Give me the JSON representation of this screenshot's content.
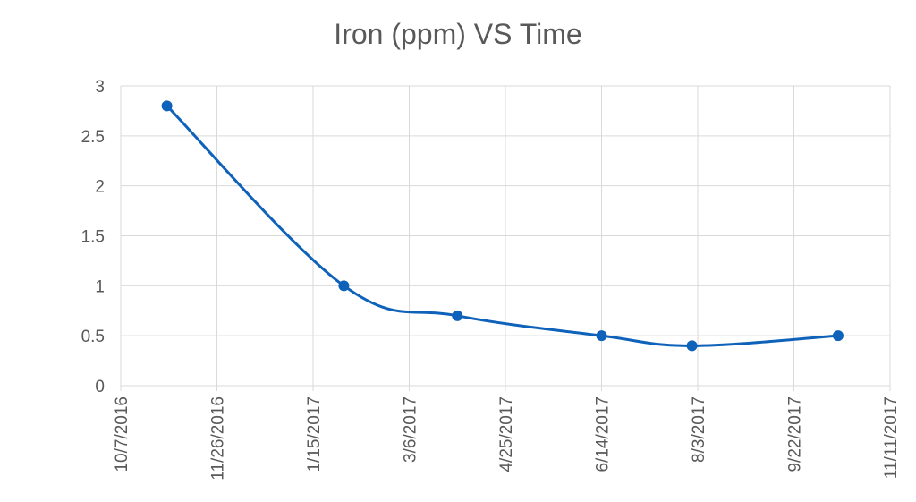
{
  "chart_data": {
    "type": "line",
    "title": "Iron (ppm) VS Time",
    "xlabel": "",
    "ylabel": "",
    "x_tick_labels": [
      "10/7/2016",
      "11/26/2016",
      "1/15/2017",
      "3/6/2017",
      "4/25/2017",
      "6/14/2017",
      "8/3/2017",
      "9/22/2017",
      "11/11/2017"
    ],
    "y_tick_labels": [
      "0",
      "0.5",
      "1",
      "1.5",
      "2",
      "2.5",
      "3"
    ],
    "xlim": [
      "2016-10-07",
      "2017-11-11"
    ],
    "ylim": [
      0,
      3
    ],
    "grid": true,
    "legend": "none",
    "smooth": true,
    "series": [
      {
        "color": "#0f62b9",
        "points": [
          {
            "x": "2016-10-31",
            "y": 2.8
          },
          {
            "x": "2017-01-31",
            "y": 1.0
          },
          {
            "x": "2017-03-31",
            "y": 0.7
          },
          {
            "x": "2017-06-14",
            "y": 0.5
          },
          {
            "x": "2017-07-31",
            "y": 0.4
          },
          {
            "x": "2017-10-15",
            "y": 0.5
          }
        ]
      }
    ]
  }
}
